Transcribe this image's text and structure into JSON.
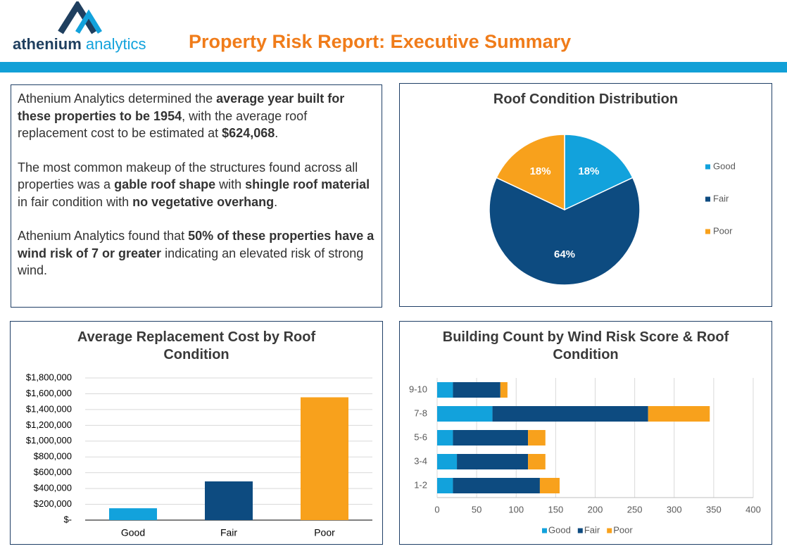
{
  "header": {
    "logo_bold": "athenium",
    "logo_light": "analytics",
    "title": "Property Risk Report: Executive Summary"
  },
  "summary": {
    "paragraphs": [
      [
        {
          "text": "Athenium Analytics determined the "
        },
        {
          "text": "average year built for these properties to be 1954",
          "bold": true
        },
        {
          "text": ", with the average roof replacement cost to be estimated at "
        },
        {
          "text": "$624,068",
          "bold": true
        },
        {
          "text": "."
        }
      ],
      [
        {
          "text": "The most common makeup of the structures found across all properties was a "
        },
        {
          "text": "gable roof shape",
          "bold": true
        },
        {
          "text": " with "
        },
        {
          "text": "shingle roof material",
          "bold": true
        },
        {
          "text": " in fair condition with "
        },
        {
          "text": "no vegetative overhang",
          "bold": true
        },
        {
          "text": "."
        }
      ],
      [
        {
          "text": "Athenium Analytics found that "
        },
        {
          "text": "50% of these properties have a wind risk of 7 or greater",
          "bold": true
        },
        {
          "text": " indicating an elevated risk of strong wind."
        }
      ]
    ]
  },
  "chart_data": [
    {
      "type": "pie",
      "title": "Roof Condition Distribution",
      "categories": [
        "Good",
        "Fair",
        "Poor"
      ],
      "values": [
        18,
        64,
        18
      ],
      "value_labels": [
        "18%",
        "64%",
        "18%"
      ],
      "colors": [
        "#12a2dc",
        "#0d4b80",
        "#f8a11c"
      ],
      "legend": "right"
    },
    {
      "type": "bar",
      "title": "Average Replacement Cost by Roof Condition",
      "categories": [
        "Good",
        "Fair",
        "Poor"
      ],
      "values": [
        150000,
        490000,
        1555000
      ],
      "colors": [
        "#12a2dc",
        "#0d4b80",
        "#f8a11c"
      ],
      "ylim": [
        0,
        1800000
      ],
      "yticks": [
        {
          "value": 0,
          "label": "$-"
        },
        {
          "value": 200000,
          "label": "$200,000"
        },
        {
          "value": 400000,
          "label": "$400,000"
        },
        {
          "value": 600000,
          "label": "$600,000"
        },
        {
          "value": 800000,
          "label": "$800,000"
        },
        {
          "value": 1000000,
          "label": "$1,000,000"
        },
        {
          "value": 1200000,
          "label": "$1,200,000"
        },
        {
          "value": 1400000,
          "label": "$1,400,000"
        },
        {
          "value": 1600000,
          "label": "$1,600,000"
        },
        {
          "value": 1800000,
          "label": "$1,800,000"
        }
      ],
      "grid": true
    },
    {
      "type": "hbar",
      "title": "Building Count by Wind Risk Score & Roof Condition",
      "categories": [
        "1-2",
        "3-4",
        "5-6",
        "7-8",
        "9-10"
      ],
      "series": [
        {
          "name": "Good",
          "color": "#12a2dc",
          "values": [
            20,
            25,
            20,
            70,
            20
          ]
        },
        {
          "name": "Fair",
          "color": "#0d4b80",
          "values": [
            110,
            90,
            95,
            197,
            60
          ]
        },
        {
          "name": "Poor",
          "color": "#f8a11c",
          "values": [
            25,
            22,
            22,
            78,
            9
          ]
        }
      ],
      "stacked": true,
      "xlim": [
        0,
        400
      ],
      "xticks": [
        0,
        50,
        100,
        150,
        200,
        250,
        300,
        350,
        400
      ],
      "grid": true,
      "legend": "bottom"
    }
  ]
}
